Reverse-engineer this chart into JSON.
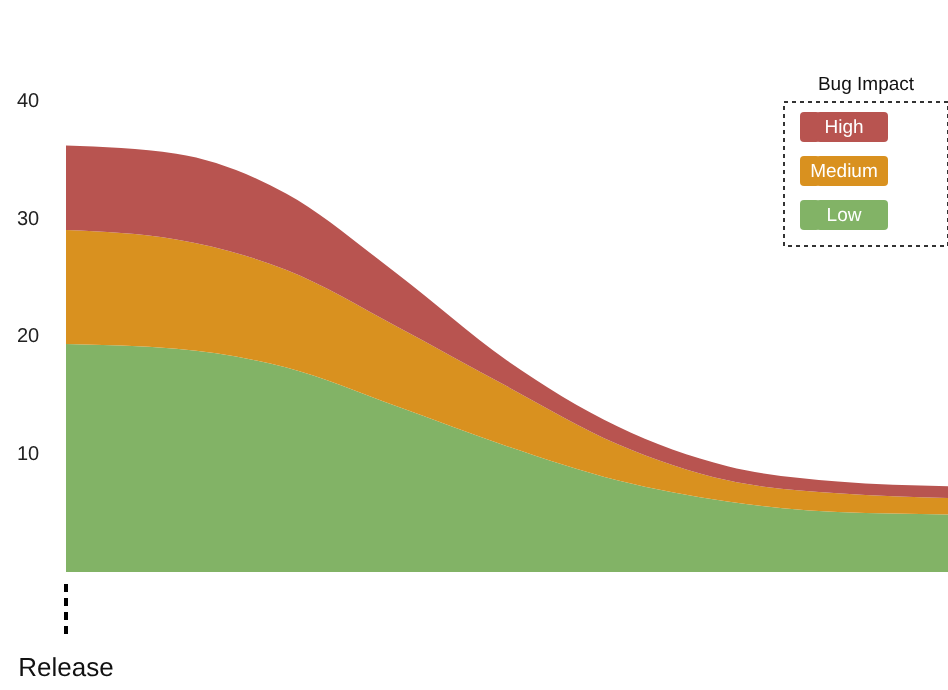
{
  "chart_data": {
    "type": "area",
    "stacked": true,
    "legend_title": "Bug Impact",
    "legend": "top right",
    "tick_labels": "y",
    "grid": false,
    "categories": [
      null,
      null,
      null,
      null,
      null,
      null,
      null,
      null,
      null
    ],
    "ylim": [
      0,
      40
    ],
    "yticks": [
      10,
      20,
      30,
      40
    ],
    "series": [
      {
        "name": "Low",
        "color": "#82b366",
        "values": [
          19.4,
          19.0,
          17.4,
          14.1,
          10.7,
          7.8,
          6.0,
          5.1,
          4.9
        ]
      },
      {
        "name": "Medium",
        "color": "#d9911f",
        "values": [
          9.7,
          9.3,
          8.3,
          6.8,
          5.1,
          3.1,
          1.8,
          1.6,
          1.4
        ]
      },
      {
        "name": "High",
        "color": "#b85450",
        "values": [
          7.2,
          7.3,
          6.5,
          4.5,
          2.2,
          1.5,
          1.2,
          1.0,
          1.0
        ]
      }
    ],
    "annotations": [
      "Release"
    ]
  }
}
